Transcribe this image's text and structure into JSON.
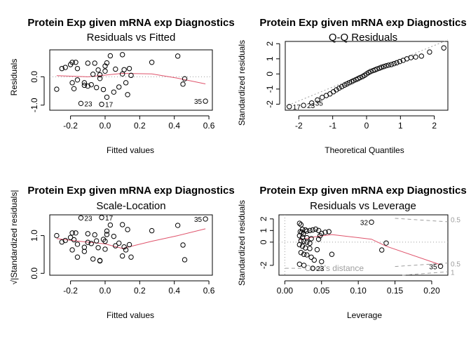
{
  "chart_data": [
    {
      "type": "scatter",
      "title": "Protein Exp given mRNA exp Diagnostics",
      "subtitle": "Residuals vs Fitted",
      "xlabel": "Fitted values",
      "ylabel": "Residuals",
      "xlim": [
        -0.32,
        0.62
      ],
      "ylim": [
        -1.18,
        0.95
      ],
      "xticks": [
        "-0.2",
        "0.0",
        "0.2",
        "0.4",
        "0.6"
      ],
      "xtick_values": [
        -0.2,
        0.0,
        0.2,
        0.4,
        0.6
      ],
      "yticks": [
        "-1.0",
        "0.0"
      ],
      "ytick_values": [
        -1.0,
        0.0
      ],
      "reference_line": 0,
      "points": [
        [
          -0.28,
          -0.44
        ],
        [
          -0.25,
          0.29
        ],
        [
          -0.23,
          0.33
        ],
        [
          -0.2,
          0.43
        ],
        [
          -0.19,
          0.51
        ],
        [
          -0.19,
          -0.21
        ],
        [
          -0.18,
          -0.42
        ],
        [
          -0.17,
          0.51
        ],
        [
          -0.16,
          0.29
        ],
        [
          -0.16,
          -0.11
        ],
        [
          -0.14,
          -0.94
        ],
        [
          -0.12,
          -0.3
        ],
        [
          -0.12,
          -0.21
        ],
        [
          -0.1,
          0.48
        ],
        [
          -0.1,
          -0.33
        ],
        [
          -0.08,
          -0.28
        ],
        [
          -0.07,
          0.09
        ],
        [
          -0.06,
          0.48
        ],
        [
          -0.05,
          -0.38
        ],
        [
          -0.04,
          0.24
        ],
        [
          -0.03,
          0.07
        ],
        [
          -0.03,
          -0.06
        ],
        [
          -0.02,
          -0.97
        ],
        [
          -0.01,
          -0.45
        ],
        [
          0.0,
          0.38
        ],
        [
          0.0,
          0.2
        ],
        [
          0.01,
          0.49
        ],
        [
          0.01,
          -0.72
        ],
        [
          0.03,
          0.74
        ],
        [
          0.05,
          -0.54
        ],
        [
          0.06,
          0.27
        ],
        [
          0.08,
          -0.36
        ],
        [
          0.1,
          0.78
        ],
        [
          0.1,
          0.1
        ],
        [
          0.11,
          0.25
        ],
        [
          0.12,
          -0.21
        ],
        [
          0.13,
          -0.63
        ],
        [
          0.14,
          0.29
        ],
        [
          0.15,
          0.05
        ],
        [
          0.27,
          0.51
        ],
        [
          0.42,
          0.73
        ],
        [
          0.45,
          -0.26
        ],
        [
          0.46,
          -0.07
        ],
        [
          0.58,
          -0.86
        ]
      ],
      "point_labels": [
        {
          "x": -0.14,
          "y": -0.94,
          "text": "23",
          "side": "right"
        },
        {
          "x": -0.02,
          "y": -0.97,
          "text": "17",
          "side": "right"
        },
        {
          "x": 0.58,
          "y": -0.86,
          "text": "35",
          "side": "left"
        }
      ],
      "smooth": [
        [
          -0.28,
          0.04
        ],
        [
          -0.1,
          0.0
        ],
        [
          0.1,
          0.12
        ],
        [
          0.27,
          0.1
        ],
        [
          0.42,
          -0.05
        ],
        [
          0.58,
          -0.25
        ]
      ]
    },
    {
      "type": "scatter",
      "title": "Protein Exp given mRNA exp Diagnostics",
      "subtitle": "Q-Q Residuals",
      "xlabel": "Theoretical Quantiles",
      "ylabel": "Standardized residuals",
      "xlim": [
        -2.4,
        2.4
      ],
      "ylim": [
        -2.4,
        2.15
      ],
      "xticks": [
        "-2",
        "-1",
        "0",
        "1",
        "2"
      ],
      "xtick_values": [
        -2,
        -1,
        0,
        1,
        2
      ],
      "yticks": [
        "-2",
        "-1",
        "0",
        "1",
        "2"
      ],
      "ytick_values": [
        -2,
        -1,
        0,
        1,
        2
      ],
      "reference_line_xy": [
        [
          -2.4,
          -2.15
        ],
        [
          2.4,
          2.25
        ]
      ],
      "points": [
        [
          -2.28,
          -2.16
        ],
        [
          -1.86,
          -2.08
        ],
        [
          -1.62,
          -1.92
        ],
        [
          -1.45,
          -1.72
        ],
        [
          -1.31,
          -1.55
        ],
        [
          -1.19,
          -1.43
        ],
        [
          -1.08,
          -1.32
        ],
        [
          -0.98,
          -1.18
        ],
        [
          -0.89,
          -1.05
        ],
        [
          -0.81,
          -0.94
        ],
        [
          -0.73,
          -0.84
        ],
        [
          -0.65,
          -0.74
        ],
        [
          -0.58,
          -0.66
        ],
        [
          -0.51,
          -0.58
        ],
        [
          -0.44,
          -0.51
        ],
        [
          -0.38,
          -0.44
        ],
        [
          -0.31,
          -0.37
        ],
        [
          -0.25,
          -0.31
        ],
        [
          -0.19,
          -0.24
        ],
        [
          -0.12,
          -0.17
        ],
        [
          -0.06,
          -0.09
        ],
        [
          0.0,
          0.0
        ],
        [
          0.06,
          0.09
        ],
        [
          0.12,
          0.16
        ],
        [
          0.19,
          0.22
        ],
        [
          0.25,
          0.27
        ],
        [
          0.31,
          0.33
        ],
        [
          0.38,
          0.38
        ],
        [
          0.44,
          0.44
        ],
        [
          0.51,
          0.49
        ],
        [
          0.58,
          0.54
        ],
        [
          0.65,
          0.58
        ],
        [
          0.73,
          0.62
        ],
        [
          0.81,
          0.68
        ],
        [
          0.89,
          0.74
        ],
        [
          0.98,
          0.82
        ],
        [
          1.08,
          0.9
        ],
        [
          1.19,
          1.0
        ],
        [
          1.31,
          1.08
        ],
        [
          1.45,
          1.12
        ],
        [
          1.62,
          1.18
        ],
        [
          1.86,
          1.45
        ],
        [
          2.28,
          1.72
        ]
      ],
      "point_labels": [
        {
          "x": -2.28,
          "y": -2.16,
          "text": "17",
          "side": "right"
        },
        {
          "x": -1.86,
          "y": -2.08,
          "text": "23",
          "side": "right"
        },
        {
          "x": -1.62,
          "y": -1.92,
          "text": "35",
          "side": "right"
        }
      ]
    },
    {
      "type": "scatter",
      "title": "Protein Exp given mRNA exp Diagnostics",
      "subtitle": "Scale-Location",
      "xlabel": "Fitted values",
      "ylabel": "√|Standardized residuals|",
      "xlim": [
        -0.32,
        0.62
      ],
      "ylim": [
        -0.05,
        1.55
      ],
      "xticks": [
        "-0.2",
        "0.0",
        "0.2",
        "0.4",
        "0.6"
      ],
      "xtick_values": [
        -0.2,
        0.0,
        0.2,
        0.4,
        0.6
      ],
      "yticks": [
        "0.0",
        "1.0"
      ],
      "ytick_values": [
        0.0,
        1.0
      ],
      "points": [
        [
          -0.28,
          1.0
        ],
        [
          -0.25,
          0.83
        ],
        [
          -0.23,
          0.87
        ],
        [
          -0.2,
          0.95
        ],
        [
          -0.19,
          1.07
        ],
        [
          -0.19,
          0.62
        ],
        [
          -0.18,
          0.89
        ],
        [
          -0.17,
          1.07
        ],
        [
          -0.16,
          0.77
        ],
        [
          -0.16,
          0.43
        ],
        [
          -0.14,
          1.47
        ],
        [
          -0.12,
          0.69
        ],
        [
          -0.12,
          0.58
        ],
        [
          -0.1,
          1.05
        ],
        [
          -0.1,
          0.82
        ],
        [
          -0.08,
          0.79
        ],
        [
          -0.07,
          0.38
        ],
        [
          -0.06,
          1.02
        ],
        [
          -0.05,
          0.86
        ],
        [
          -0.04,
          0.68
        ],
        [
          -0.03,
          0.34
        ],
        [
          -0.03,
          0.33
        ],
        [
          -0.02,
          1.48
        ],
        [
          -0.01,
          0.9
        ],
        [
          0.0,
          0.85
        ],
        [
          0.0,
          0.64
        ],
        [
          0.01,
          1.03
        ],
        [
          0.01,
          1.12
        ],
        [
          0.03,
          1.28
        ],
        [
          0.05,
          0.98
        ],
        [
          0.06,
          0.73
        ],
        [
          0.08,
          0.8
        ],
        [
          0.1,
          1.29
        ],
        [
          0.1,
          0.46
        ],
        [
          0.11,
          0.7
        ],
        [
          0.12,
          0.62
        ],
        [
          0.13,
          1.16
        ],
        [
          0.14,
          0.76
        ],
        [
          0.15,
          0.43
        ],
        [
          0.27,
          1.13
        ],
        [
          0.42,
          1.27
        ],
        [
          0.45,
          0.75
        ],
        [
          0.46,
          0.36
        ],
        [
          0.58,
          1.44
        ]
      ],
      "point_labels": [
        {
          "x": -0.14,
          "y": 1.47,
          "text": "23",
          "side": "right"
        },
        {
          "x": -0.02,
          "y": 1.48,
          "text": "17",
          "side": "right"
        },
        {
          "x": 0.58,
          "y": 1.44,
          "text": "35",
          "side": "left"
        }
      ],
      "smooth": [
        [
          -0.28,
          0.92
        ],
        [
          -0.15,
          0.85
        ],
        [
          0.0,
          0.78
        ],
        [
          0.1,
          0.66
        ],
        [
          0.27,
          0.85
        ],
        [
          0.42,
          1.0
        ],
        [
          0.58,
          1.18
        ]
      ]
    },
    {
      "type": "scatter",
      "title": "Protein Exp given mRNA exp Diagnostics",
      "subtitle": "Residuals vs Leverage",
      "xlabel": "Leverage",
      "ylabel": "Standardized residuals",
      "xlim": [
        -0.008,
        0.222
      ],
      "ylim": [
        -2.85,
        2.35
      ],
      "xticks": [
        "0.00",
        "0.05",
        "0.10",
        "0.15",
        "0.20"
      ],
      "xtick_values": [
        0.0,
        0.05,
        0.1,
        0.15,
        0.2
      ],
      "yticks": [
        "-2",
        "0",
        "1",
        "2"
      ],
      "ytick_values": [
        -2,
        0,
        1,
        2
      ],
      "cooks_distance_label": "Cook's distance",
      "cooks_levels": [
        "0.5",
        "1"
      ],
      "cook_right_labels": [
        {
          "text": "0.5",
          "y": 1.9
        },
        {
          "text": "0.5",
          "y": -1.9
        },
        {
          "text": "1",
          "y": -2.65
        }
      ],
      "points": [
        [
          0.02,
          1.62
        ],
        [
          0.022,
          1.5
        ],
        [
          0.024,
          1.1
        ],
        [
          0.028,
          1.05
        ],
        [
          0.03,
          0.95
        ],
        [
          0.021,
          0.9
        ],
        [
          0.023,
          0.85
        ],
        [
          0.034,
          1.0
        ],
        [
          0.038,
          1.05
        ],
        [
          0.042,
          1.12
        ],
        [
          0.046,
          1.0
        ],
        [
          0.05,
          0.75
        ],
        [
          0.055,
          0.85
        ],
        [
          0.06,
          0.9
        ],
        [
          0.025,
          0.7
        ],
        [
          0.02,
          0.55
        ],
        [
          0.024,
          0.42
        ],
        [
          0.03,
          0.38
        ],
        [
          0.036,
          0.3
        ],
        [
          0.046,
          0.25
        ],
        [
          0.022,
          0.12
        ],
        [
          0.026,
          0.08
        ],
        [
          0.03,
          0.0
        ],
        [
          0.034,
          -0.1
        ],
        [
          0.02,
          -0.22
        ],
        [
          0.024,
          -0.35
        ],
        [
          0.028,
          -0.5
        ],
        [
          0.034,
          -0.55
        ],
        [
          0.044,
          -0.65
        ],
        [
          0.022,
          -0.9
        ],
        [
          0.026,
          -1.05
        ],
        [
          0.03,
          -1.1
        ],
        [
          0.036,
          -1.3
        ],
        [
          0.04,
          -1.55
        ],
        [
          0.05,
          -1.68
        ],
        [
          0.064,
          -1.05
        ],
        [
          0.02,
          -1.9
        ],
        [
          0.026,
          -2.0
        ],
        [
          0.038,
          -2.25
        ],
        [
          0.118,
          1.72
        ],
        [
          0.132,
          -0.68
        ],
        [
          0.138,
          -0.08
        ],
        [
          0.212,
          -2.08
        ],
        [
          0.048,
          0.55
        ]
      ],
      "point_labels": [
        {
          "x": 0.118,
          "y": 1.72,
          "text": "32",
          "side": "left"
        },
        {
          "x": 0.038,
          "y": -2.25,
          "text": "23",
          "side": "right"
        },
        {
          "x": 0.212,
          "y": -2.08,
          "text": "35",
          "side": "left"
        }
      ],
      "smooth": [
        [
          0.02,
          0.2
        ],
        [
          0.04,
          0.45
        ],
        [
          0.064,
          0.65
        ],
        [
          0.118,
          0.25
        ],
        [
          0.138,
          -0.35
        ],
        [
          0.212,
          -1.95
        ]
      ]
    }
  ]
}
